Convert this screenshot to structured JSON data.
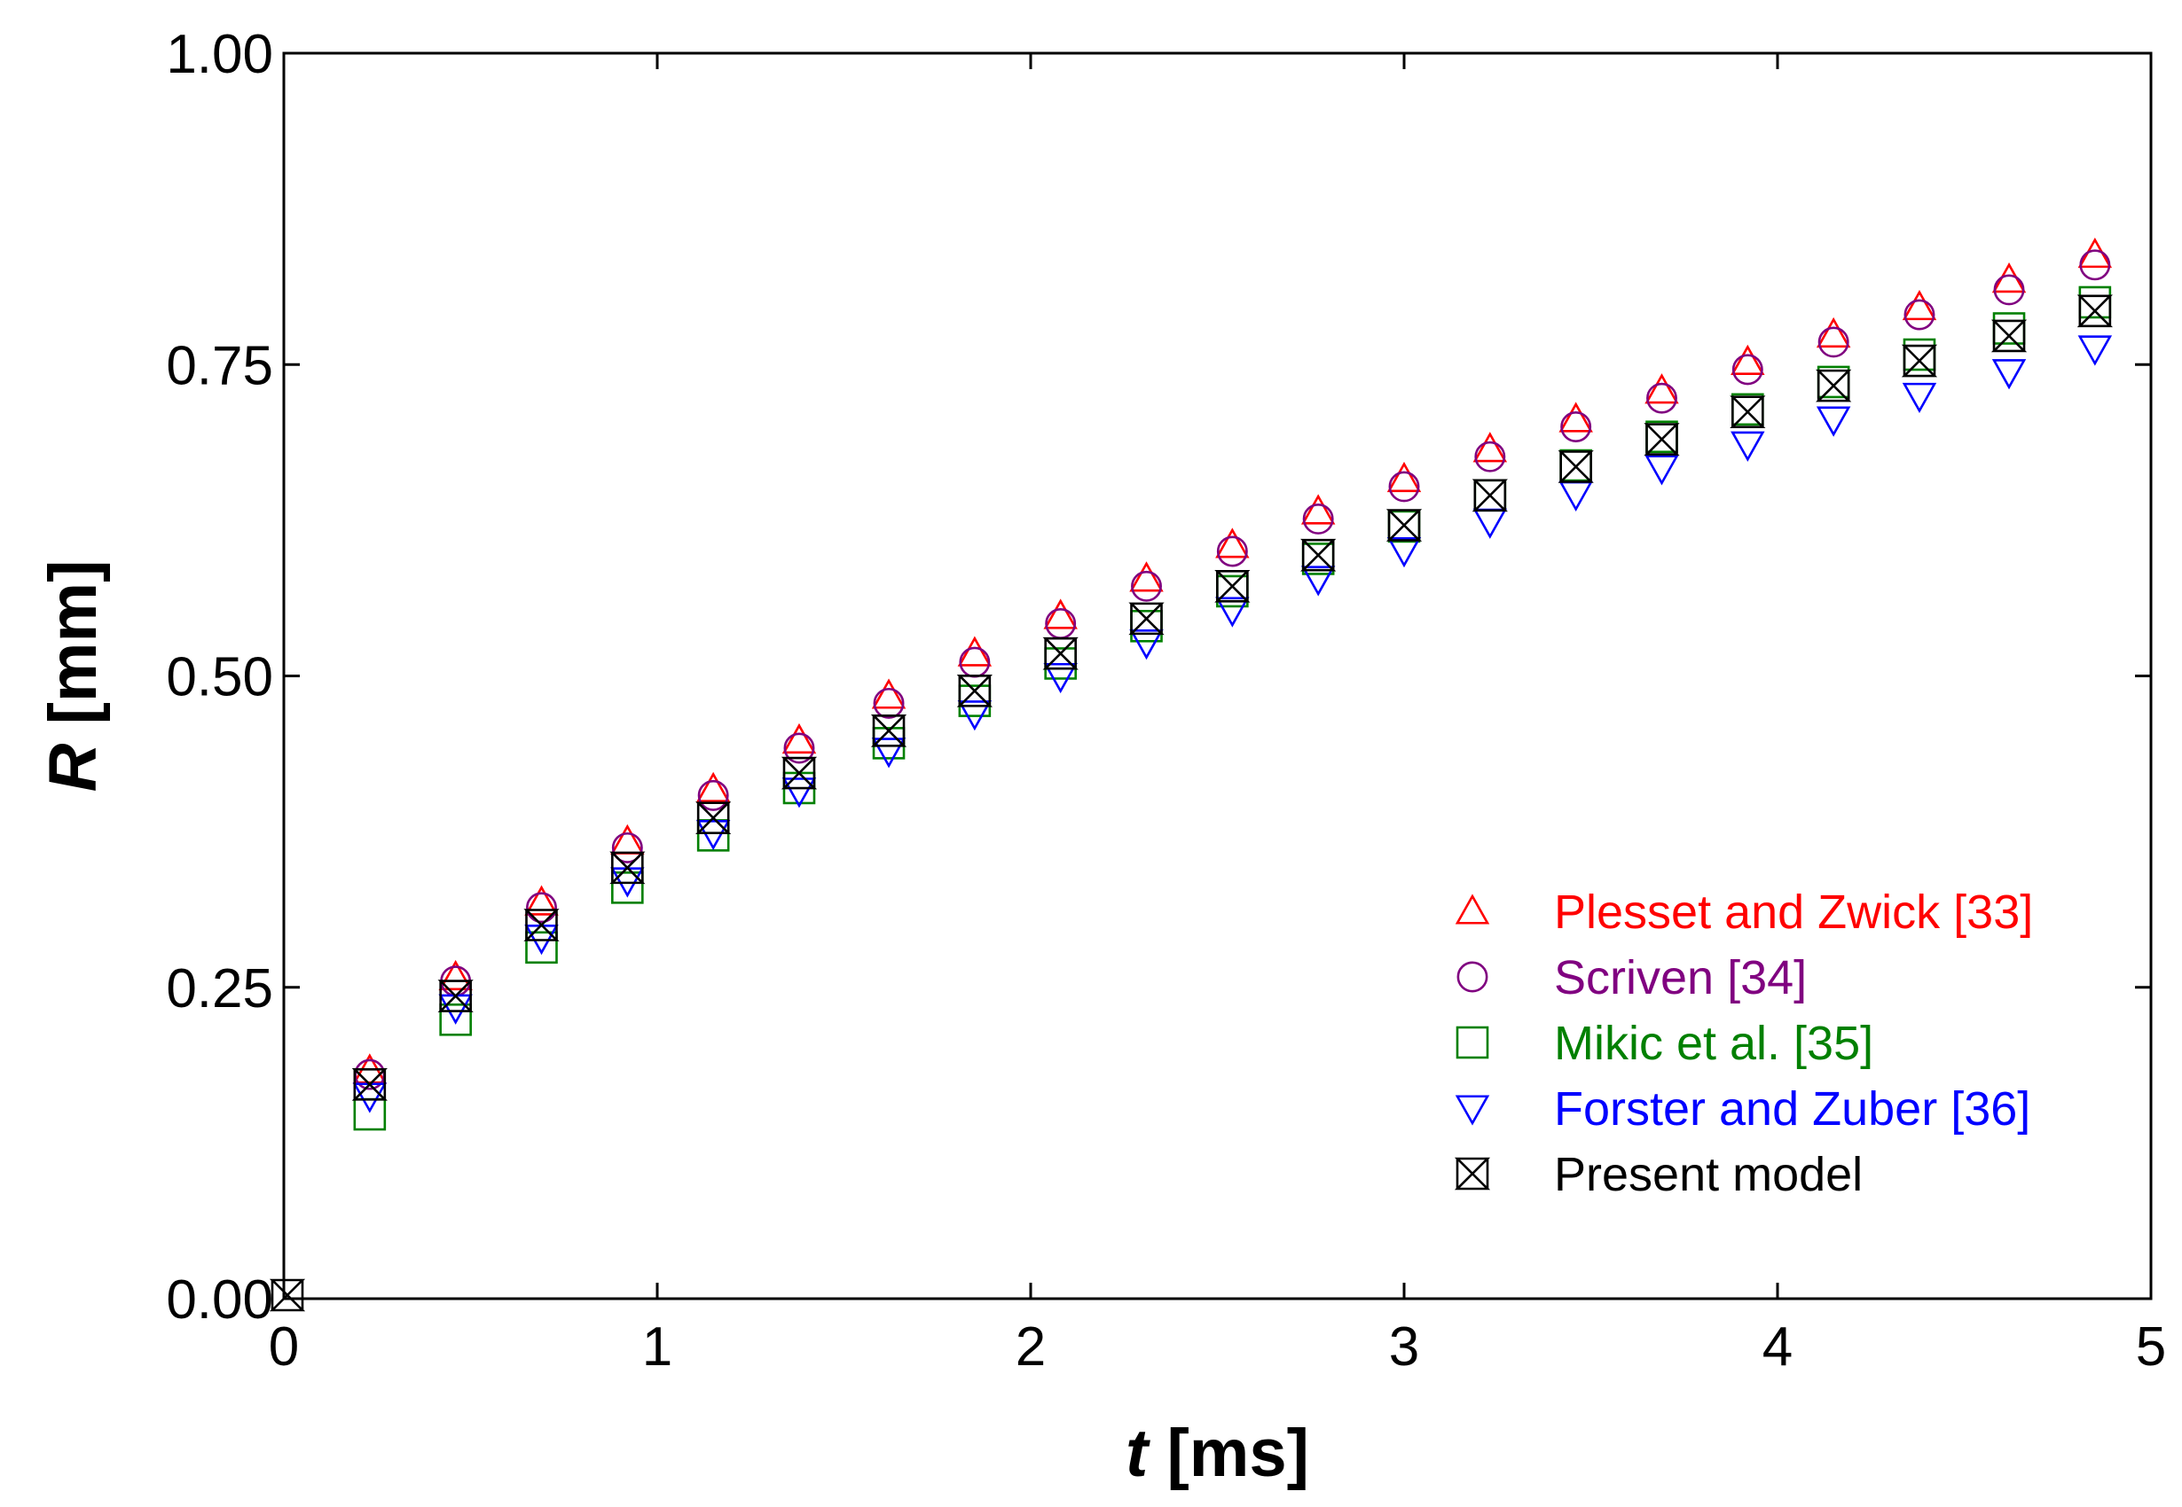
{
  "chart_data": {
    "type": "scatter",
    "title": "",
    "xlabel": {
      "var": "t",
      "unit": " [ms]"
    },
    "ylabel": {
      "var": "R",
      "unit": " [mm]"
    },
    "xlim": [
      0,
      5
    ],
    "ylim": [
      0,
      1
    ],
    "xticks": [
      {
        "value": 0,
        "label": "0"
      },
      {
        "value": 1,
        "label": "1"
      },
      {
        "value": 2,
        "label": "2"
      },
      {
        "value": 3,
        "label": "3"
      },
      {
        "value": 4,
        "label": "4"
      },
      {
        "value": 5,
        "label": "5"
      }
    ],
    "yticks": [
      {
        "value": 0,
        "label": "0.00"
      },
      {
        "value": 0.25,
        "label": "0.25"
      },
      {
        "value": 0.5,
        "label": "0.50"
      },
      {
        "value": 0.75,
        "label": "0.75"
      },
      {
        "value": 1,
        "label": "1.00"
      }
    ],
    "x": [
      0.23,
      0.46,
      0.69,
      0.92,
      1.15,
      1.38,
      1.62,
      1.85,
      2.08,
      2.31,
      2.54,
      2.77,
      3.0,
      3.23,
      3.46,
      3.69,
      3.92,
      4.15,
      4.38,
      4.62,
      4.85
    ],
    "legend_position": "lower-right",
    "series": [
      {
        "name": "Plesset and Zwick [33]",
        "marker": "triangle-up",
        "color": "#ff0000",
        "values": [
          0.183,
          0.258,
          0.318,
          0.367,
          0.409,
          0.448,
          0.484,
          0.518,
          0.548,
          0.578,
          0.605,
          0.632,
          0.658,
          0.682,
          0.706,
          0.729,
          0.752,
          0.774,
          0.796,
          0.818,
          0.838
        ]
      },
      {
        "name": "Scriven [34]",
        "marker": "circle",
        "color": "#800080",
        "values": [
          0.18,
          0.255,
          0.314,
          0.362,
          0.404,
          0.442,
          0.478,
          0.511,
          0.542,
          0.572,
          0.6,
          0.626,
          0.652,
          0.676,
          0.7,
          0.723,
          0.746,
          0.768,
          0.79,
          0.81,
          0.83
        ]
      },
      {
        "name": "Mikic et al. [35]",
        "marker": "square",
        "color": "#008000",
        "values": [
          0.148,
          0.224,
          0.282,
          0.33,
          0.372,
          0.41,
          0.446,
          0.48,
          0.51,
          0.54,
          0.568,
          0.594,
          0.62,
          0.645,
          0.669,
          0.692,
          0.714,
          0.736,
          0.758,
          0.779,
          0.8
        ]
      },
      {
        "name": "Forster and Zuber [36]",
        "marker": "triangle-down",
        "color": "#0000ff",
        "values": [
          0.163,
          0.234,
          0.29,
          0.336,
          0.374,
          0.408,
          0.44,
          0.47,
          0.5,
          0.527,
          0.553,
          0.578,
          0.601,
          0.624,
          0.646,
          0.667,
          0.686,
          0.706,
          0.725,
          0.744,
          0.763
        ]
      },
      {
        "name": "Present model",
        "marker": "bowtie",
        "color": "#000000",
        "values": [
          0.172,
          0.243,
          0.3,
          0.346,
          0.386,
          0.422,
          0.456,
          0.488,
          0.518,
          0.546,
          0.572,
          0.597,
          0.621,
          0.645,
          0.668,
          0.69,
          0.712,
          0.733,
          0.753,
          0.773,
          0.793
        ]
      }
    ],
    "origin_marker": {
      "x": 0,
      "y": 0
    }
  }
}
